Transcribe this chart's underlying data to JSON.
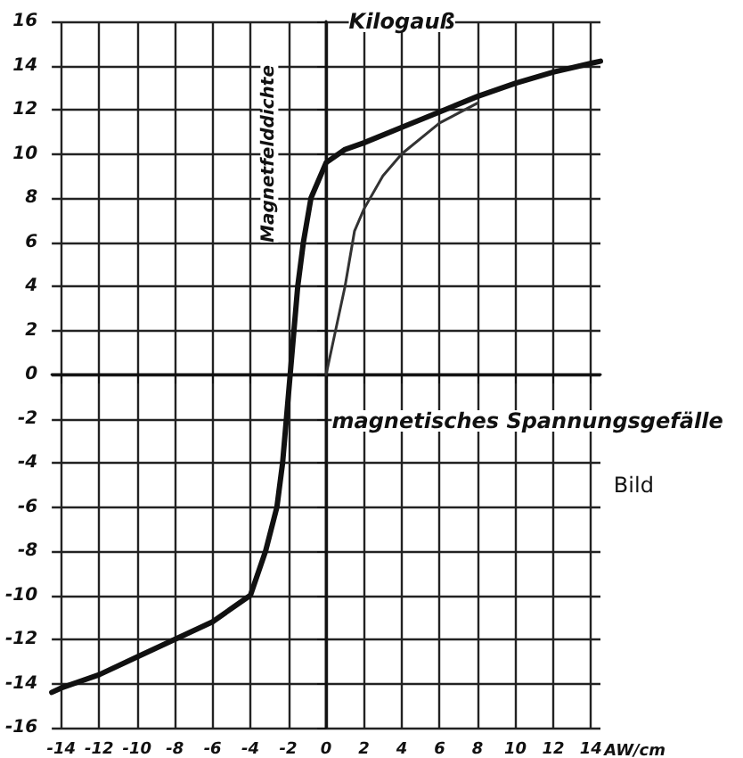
{
  "chart_data": {
    "type": "line",
    "xlabel": "magnetisches Spannungsgefälle",
    "ylabel": "Magnetfelddichte",
    "annotations": [
      "Kilogauß",
      "Bild",
      "AW/cm"
    ],
    "xlim": [
      -14.5,
      14.5
    ],
    "ylim": [
      -16,
      16
    ],
    "xticks": [
      -14,
      -12,
      -10,
      -8,
      -6,
      -4,
      -2,
      0,
      2,
      4,
      6,
      8,
      10,
      12,
      14
    ],
    "yticks": [
      -16,
      -14,
      -12,
      -10,
      -8,
      -6,
      -4,
      -2,
      0,
      2,
      4,
      6,
      8,
      10,
      12,
      14,
      16
    ],
    "grid": true,
    "marker": "none",
    "line_style": "solid",
    "series": [
      {
        "color": "#111111",
        "x": [
          -14.5,
          -14,
          -12,
          -10,
          -8,
          -6,
          -4,
          -3.2,
          -2.6,
          -2.3,
          -2.1,
          -1.9,
          -1.7,
          -1.5,
          -1.2,
          -0.8,
          0,
          1,
          2,
          4,
          6,
          8,
          10,
          12,
          14,
          14.5
        ],
        "values": [
          -14.4,
          -14.2,
          -13.6,
          -12.8,
          -12,
          -11.2,
          -10,
          -8,
          -6,
          -4,
          -2,
          0,
          2,
          4,
          6,
          8,
          9.6,
          10.2,
          10.5,
          11.2,
          11.9,
          12.6,
          13.2,
          13.7,
          14.1,
          14.2
        ]
      },
      {
        "color": "#333333",
        "x": [
          0,
          0.5,
          1,
          1.5,
          2,
          3,
          4,
          6,
          8
        ],
        "values": [
          0,
          2,
          4,
          6.5,
          7.5,
          9,
          10,
          11.4,
          12.3
        ]
      }
    ]
  }
}
